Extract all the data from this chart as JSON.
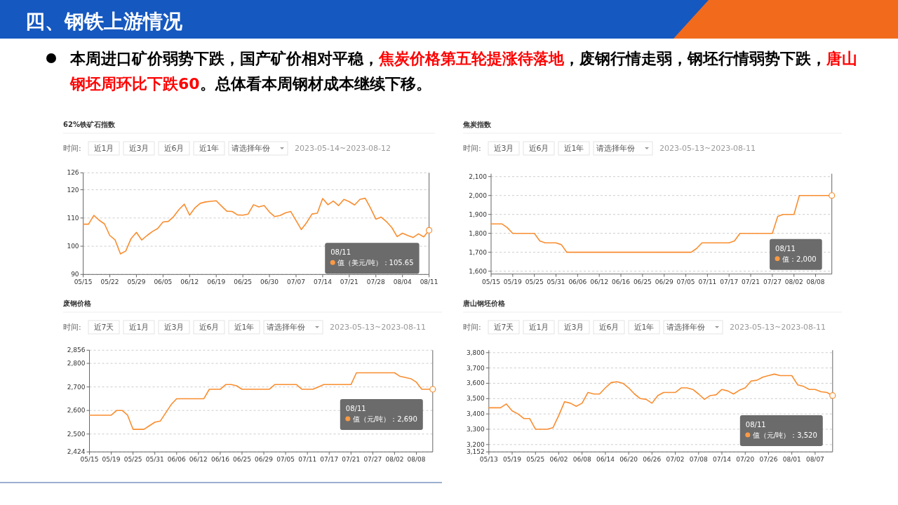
{
  "chart_data": [
    {
      "type": "line",
      "title": "62%铁矿石指数",
      "grid": "y",
      "ylim": [
        90,
        126
      ],
      "categories": [
        "05/15",
        null,
        null,
        null,
        null,
        "05/22",
        null,
        null,
        null,
        null,
        "05/29",
        null,
        null,
        null,
        null,
        "06/05",
        null,
        null,
        null,
        null,
        "06/12",
        null,
        null,
        null,
        null,
        "06/19",
        null,
        null,
        null,
        null,
        "06/25",
        null,
        null,
        null,
        null,
        "06/30",
        null,
        null,
        null,
        null,
        "07/07",
        null,
        null,
        null,
        null,
        "07/14",
        null,
        null,
        null,
        null,
        "07/21",
        null,
        null,
        null,
        null,
        "07/28",
        null,
        null,
        null,
        null,
        "08/04",
        null,
        null,
        null,
        null,
        "08/11"
      ],
      "yticks": [
        90,
        100,
        110,
        120,
        126
      ],
      "series": [
        {
          "color": "#f98d2f",
          "values": [
            107.8,
            107.8,
            110.9,
            109.2,
            107.9,
            103.8,
            102.2,
            97.3,
            98.3,
            102.7,
            104.9,
            102.2,
            103.8,
            105.2,
            106.3,
            108.6,
            108.8,
            110.5,
            113,
            114.9,
            111,
            113.6,
            115.2,
            115.7,
            115.9,
            116.1,
            114.2,
            112.4,
            112.3,
            111.1,
            111,
            111.4,
            114.7,
            113.9,
            114.4,
            112.1,
            110.5,
            110.9,
            111.8,
            112.3,
            109.1,
            105.9,
            108.4,
            111.4,
            111.7,
            116.9,
            114.7,
            116,
            114.4,
            116.6,
            115.8,
            114.6,
            116.6,
            117,
            113.5,
            109.6,
            110.3,
            108.7,
            106.6,
            103.4,
            104.6,
            103.8,
            103.1,
            104.4,
            103.3,
            105.65
          ]
        }
      ],
      "annotations": [
        "四、钢铁上游情况",
        "本周进口矿价弱势下跌，国产矿价相对平稳，",
        "焦炭价格第五轮提涨待落地",
        "，废钢行情走弱，钢坯行情弱势下跌，",
        "唐山钢坯周环比下跌60",
        "。总体看本周钢材成本继续下移。",
        "时间:",
        "近1月",
        "近3月",
        "近6月",
        "近1年",
        "请选择年份",
        "2023-05-14~2023-08-12",
        "08/11\n值（美元/吨）：105.65"
      ]
    },
    {
      "type": "line",
      "title": "焦炭指数",
      "grid": "y",
      "ylim": [
        1585,
        2115
      ],
      "categories": [
        "05/15",
        null,
        null,
        null,
        "05/19",
        null,
        null,
        null,
        "05/25",
        null,
        null,
        null,
        "05/31",
        null,
        null,
        null,
        "06/06",
        null,
        null,
        null,
        "06/12",
        null,
        null,
        null,
        "06/16",
        null,
        null,
        null,
        "06/25",
        null,
        null,
        null,
        "06/29",
        null,
        null,
        null,
        "07/05",
        null,
        null,
        null,
        "07/11",
        null,
        null,
        null,
        "07/17",
        null,
        null,
        null,
        "07/21",
        null,
        null,
        null,
        "07/27",
        null,
        null,
        null,
        "08/02",
        null,
        null,
        null,
        "08/08",
        null,
        null,
        null
      ],
      "yticks": [
        {
          "value": 1600,
          "label": "1,600"
        },
        {
          "value": 1700,
          "label": "1,700"
        },
        {
          "value": 1800,
          "label": "1,800"
        },
        {
          "value": 1900,
          "label": "1,900"
        },
        {
          "value": 2000,
          "label": "2,000"
        },
        {
          "value": 2100,
          "label": "2,100"
        }
      ],
      "series": [
        {
          "color": "#f98d2f",
          "values": [
            1850,
            1850,
            1850,
            1830,
            1800,
            1800,
            1800,
            1800,
            1800,
            1760,
            1750,
            1750,
            1750,
            1740,
            1700,
            1700,
            1700,
            1700,
            1700,
            1700,
            1700,
            1700,
            1700,
            1700,
            1700,
            1700,
            1700,
            1700,
            1700,
            1700,
            1700,
            1700,
            1700,
            1700,
            1700,
            1700,
            1700,
            1700,
            1720,
            1750,
            1750,
            1750,
            1750,
            1750,
            1750,
            1760,
            1800,
            1800,
            1800,
            1800,
            1800,
            1800,
            1800,
            1890,
            1900,
            1900,
            1900,
            2000,
            2000,
            2000,
            2000,
            2000,
            2000,
            2000
          ]
        }
      ],
      "annotations": [
        "时间:",
        "近3月",
        "近6月",
        "近1年",
        "请选择年份",
        "2023-05-13~2023-08-11",
        "08/11\n值：2,000"
      ]
    },
    {
      "type": "line",
      "title": "废钢价格",
      "grid": "y",
      "ylim": [
        2424,
        2856
      ],
      "categories": [
        "05/15",
        null,
        null,
        null,
        "05/19",
        null,
        null,
        null,
        "05/25",
        null,
        null,
        null,
        "05/31",
        null,
        null,
        null,
        "06/06",
        null,
        null,
        null,
        "06/12",
        null,
        null,
        null,
        "06/16",
        null,
        null,
        null,
        "06/25",
        null,
        null,
        null,
        "06/29",
        null,
        null,
        null,
        "07/05",
        null,
        null,
        null,
        "07/11",
        null,
        null,
        null,
        "07/17",
        null,
        null,
        null,
        "07/21",
        null,
        null,
        null,
        "07/27",
        null,
        null,
        null,
        "08/02",
        null,
        null,
        null,
        "08/08",
        null,
        null,
        null
      ],
      "yticks": [
        {
          "value": 2424,
          "label": "2,424"
        },
        {
          "value": 2500,
          "label": "2,500"
        },
        {
          "value": 2600,
          "label": "2,600"
        },
        {
          "value": 2700,
          "label": "2,700"
        },
        {
          "value": 2800,
          "label": "2,800"
        },
        {
          "value": 2856,
          "label": "2,856"
        }
      ],
      "series": [
        {
          "color": "#f98d2f",
          "values": [
            2580,
            2580,
            2580,
            2580,
            2580,
            2600,
            2600,
            2580,
            2520,
            2520,
            2520,
            2535,
            2550,
            2555,
            2590,
            2625,
            2650,
            2650,
            2650,
            2650,
            2650,
            2650,
            2690,
            2690,
            2690,
            2710,
            2710,
            2705,
            2690,
            2690,
            2690,
            2690,
            2690,
            2690,
            2710,
            2710,
            2710,
            2710,
            2710,
            2690,
            2690,
            2690,
            2700,
            2710,
            2710,
            2710,
            2710,
            2710,
            2710,
            2760,
            2760,
            2760,
            2760,
            2760,
            2760,
            2760,
            2760,
            2745,
            2740,
            2735,
            2720,
            2690,
            2690,
            2690
          ]
        }
      ],
      "annotations": [
        "时间:",
        "近7天",
        "近1月",
        "近3月",
        "近6月",
        "近1年",
        "请选择年份",
        "2023-05-13~2023-08-11",
        "08/11\n值（元/吨）：2,690"
      ]
    },
    {
      "type": "line",
      "title": "唐山钢坯价格",
      "grid": "y",
      "ylim": [
        3152,
        3816
      ],
      "categories": [
        "05/13",
        null,
        null,
        null,
        "05/19",
        null,
        null,
        null,
        "05/25",
        null,
        null,
        null,
        "06/02",
        null,
        null,
        null,
        "06/08",
        null,
        null,
        null,
        "06/14",
        null,
        null,
        null,
        "06/20",
        null,
        null,
        null,
        "06/26",
        null,
        null,
        null,
        "07/02",
        null,
        null,
        null,
        "07/08",
        null,
        null,
        null,
        "07/14",
        null,
        null,
        null,
        "07/20",
        null,
        null,
        null,
        "07/26",
        null,
        null,
        null,
        "08/01",
        null,
        null,
        null,
        "08/07",
        null,
        null,
        null
      ],
      "yticks": [
        {
          "value": 3152,
          "label": "3,152"
        },
        {
          "value": 3200,
          "label": "3,200"
        },
        {
          "value": 3300,
          "label": "3,300"
        },
        {
          "value": 3400,
          "label": "3,400"
        },
        {
          "value": 3500,
          "label": "3,500"
        },
        {
          "value": 3600,
          "label": "3,600"
        },
        {
          "value": 3700,
          "label": "3,700"
        },
        {
          "value": 3800,
          "label": "3,800"
        }
      ],
      "series": [
        {
          "color": "#f98d2f",
          "values": [
            3440,
            3440,
            3440,
            3465,
            3420,
            3400,
            3370,
            3370,
            3300,
            3300,
            3300,
            3310,
            3390,
            3480,
            3470,
            3450,
            3470,
            3540,
            3530,
            3530,
            3570,
            3605,
            3610,
            3600,
            3570,
            3530,
            3500,
            3495,
            3470,
            3520,
            3540,
            3540,
            3540,
            3570,
            3570,
            3560,
            3530,
            3495,
            3520,
            3525,
            3560,
            3550,
            3530,
            3555,
            3570,
            3615,
            3620,
            3640,
            3650,
            3660,
            3650,
            3650,
            3650,
            3590,
            3580,
            3560,
            3560,
            3545,
            3540,
            3520
          ]
        }
      ],
      "annotations": [
        "时间:",
        "近7天",
        "近1月",
        "近3月",
        "近6月",
        "近1年",
        "请选择年份",
        "2023-05-13~2023-08-11",
        "08/11\n值（元/吨）：3,520"
      ]
    }
  ]
}
